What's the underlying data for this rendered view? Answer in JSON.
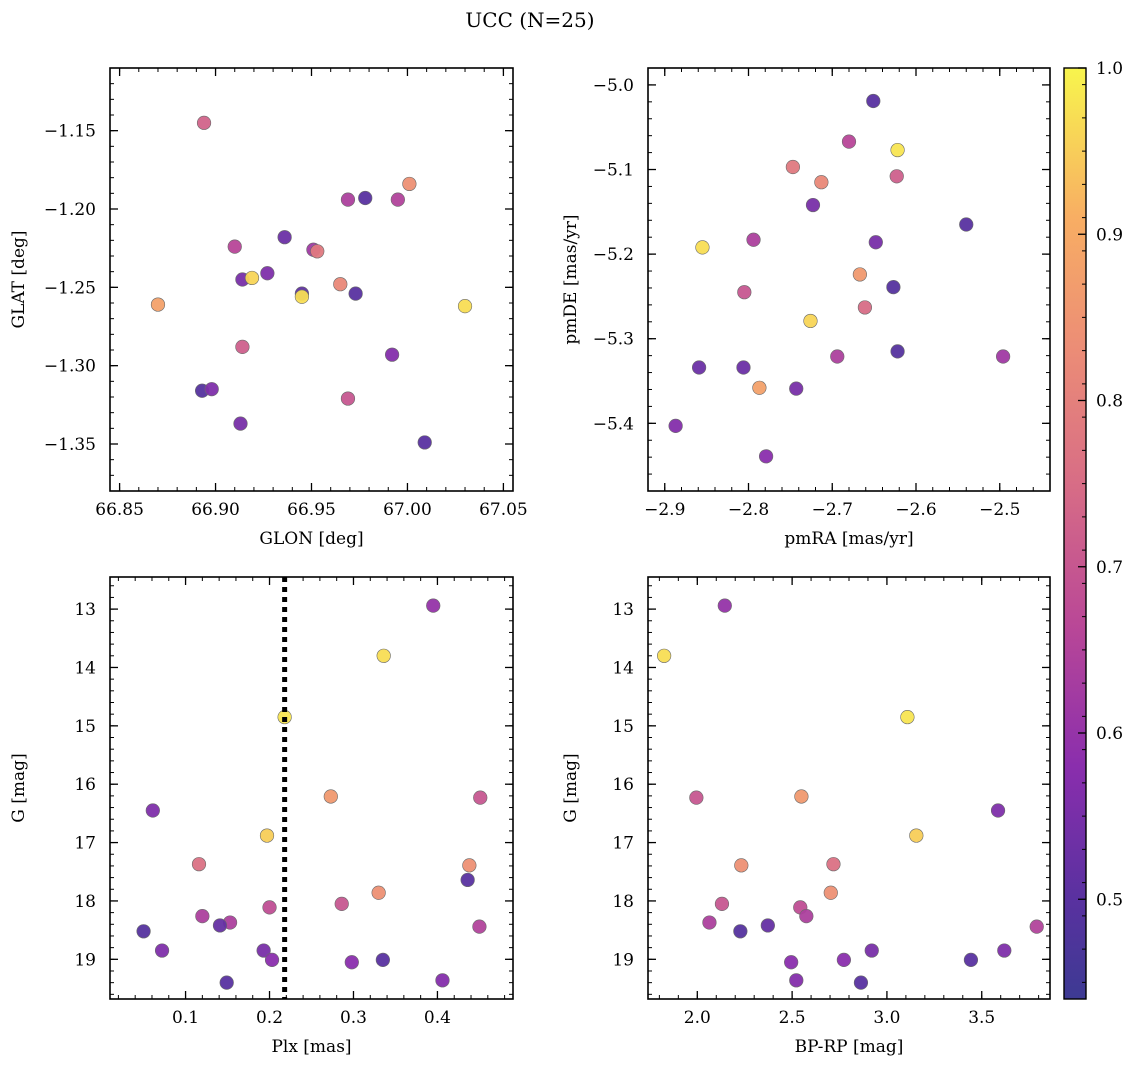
{
  "figure": {
    "title": "UCC (N=25)"
  },
  "colorbar": {
    "range": [
      0.44,
      1.0
    ],
    "ticks": [
      0.5,
      0.6,
      0.7,
      0.8,
      0.9,
      1.0
    ],
    "tick_labels": [
      "0.5",
      "0.6",
      "0.7",
      "0.8",
      "0.9",
      "1.0"
    ],
    "colormap": "plasma"
  },
  "chart_data": [
    {
      "type": "scatter",
      "xlabel": "GLON [deg]",
      "ylabel": "GLAT [deg]",
      "xlim": [
        66.845,
        67.055
      ],
      "ylim": [
        -1.38,
        -1.11
      ],
      "x_ticks": [
        66.85,
        66.9,
        66.95,
        67.0,
        67.05
      ],
      "x_tick_labels": [
        "66.85",
        "66.90",
        "66.95",
        "67.00",
        "67.05"
      ],
      "y_ticks": [
        -1.15,
        -1.2,
        -1.25,
        -1.3,
        -1.35
      ],
      "y_tick_labels": [
        "−1.15",
        "−1.20",
        "−1.25",
        "−1.30",
        "−1.35"
      ],
      "y_inverted": false,
      "points": [
        {
          "x": 66.894,
          "y": -1.145,
          "c": 0.73
        },
        {
          "x": 67.001,
          "y": -1.184,
          "c": 0.84
        },
        {
          "x": 66.969,
          "y": -1.194,
          "c": 0.64
        },
        {
          "x": 66.978,
          "y": -1.193,
          "c": 0.5
        },
        {
          "x": 66.995,
          "y": -1.194,
          "c": 0.65
        },
        {
          "x": 66.936,
          "y": -1.218,
          "c": 0.53
        },
        {
          "x": 66.91,
          "y": -1.224,
          "c": 0.66
        },
        {
          "x": 66.951,
          "y": -1.226,
          "c": 0.62
        },
        {
          "x": 66.953,
          "y": -1.227,
          "c": 0.78
        },
        {
          "x": 66.914,
          "y": -1.245,
          "c": 0.55
        },
        {
          "x": 66.919,
          "y": -1.244,
          "c": 0.96
        },
        {
          "x": 66.927,
          "y": -1.241,
          "c": 0.56
        },
        {
          "x": 66.965,
          "y": -1.248,
          "c": 0.82
        },
        {
          "x": 66.945,
          "y": -1.254,
          "c": 0.51
        },
        {
          "x": 66.945,
          "y": -1.256,
          "c": 0.97
        },
        {
          "x": 66.973,
          "y": -1.254,
          "c": 0.5
        },
        {
          "x": 66.87,
          "y": -1.261,
          "c": 0.88
        },
        {
          "x": 67.03,
          "y": -1.262,
          "c": 0.97
        },
        {
          "x": 66.914,
          "y": -1.288,
          "c": 0.72
        },
        {
          "x": 66.992,
          "y": -1.293,
          "c": 0.57
        },
        {
          "x": 66.893,
          "y": -1.316,
          "c": 0.49
        },
        {
          "x": 66.898,
          "y": -1.315,
          "c": 0.56
        },
        {
          "x": 66.969,
          "y": -1.321,
          "c": 0.7
        },
        {
          "x": 66.913,
          "y": -1.337,
          "c": 0.55
        },
        {
          "x": 67.009,
          "y": -1.349,
          "c": 0.5
        }
      ]
    },
    {
      "type": "scatter",
      "xlabel": "pmRA [mas/yr]",
      "ylabel": "pmDE [mas/yr]",
      "xlim": [
        -2.92,
        -2.44
      ],
      "ylim": [
        -5.48,
        -4.98
      ],
      "x_ticks": [
        -2.9,
        -2.8,
        -2.7,
        -2.6,
        -2.5
      ],
      "x_tick_labels": [
        "−2.9",
        "−2.8",
        "−2.7",
        "−2.6",
        "−2.5"
      ],
      "y_ticks": [
        -5.0,
        -5.1,
        -5.2,
        -5.3,
        -5.4
      ],
      "y_tick_labels": [
        "−5.0",
        "−5.1",
        "−5.2",
        "−5.3",
        "−5.4"
      ],
      "y_inverted": false,
      "points": [
        {
          "x": -2.651,
          "y": -5.019,
          "c": 0.5
        },
        {
          "x": -2.68,
          "y": -5.067,
          "c": 0.66
        },
        {
          "x": -2.622,
          "y": -5.077,
          "c": 0.98
        },
        {
          "x": -2.747,
          "y": -5.097,
          "c": 0.78
        },
        {
          "x": -2.623,
          "y": -5.108,
          "c": 0.72
        },
        {
          "x": -2.713,
          "y": -5.115,
          "c": 0.82
        },
        {
          "x": -2.723,
          "y": -5.142,
          "c": 0.55
        },
        {
          "x": -2.54,
          "y": -5.165,
          "c": 0.5
        },
        {
          "x": -2.794,
          "y": -5.183,
          "c": 0.64
        },
        {
          "x": -2.648,
          "y": -5.186,
          "c": 0.55
        },
        {
          "x": -2.855,
          "y": -5.192,
          "c": 0.97
        },
        {
          "x": -2.667,
          "y": -5.224,
          "c": 0.86
        },
        {
          "x": -2.627,
          "y": -5.239,
          "c": 0.49
        },
        {
          "x": -2.805,
          "y": -5.245,
          "c": 0.7
        },
        {
          "x": -2.661,
          "y": -5.263,
          "c": 0.75
        },
        {
          "x": -2.726,
          "y": -5.279,
          "c": 0.96
        },
        {
          "x": -2.622,
          "y": -5.315,
          "c": 0.49
        },
        {
          "x": -2.694,
          "y": -5.321,
          "c": 0.64
        },
        {
          "x": -2.496,
          "y": -5.321,
          "c": 0.62
        },
        {
          "x": -2.859,
          "y": -5.334,
          "c": 0.53
        },
        {
          "x": -2.806,
          "y": -5.334,
          "c": 0.53
        },
        {
          "x": -2.787,
          "y": -5.358,
          "c": 0.88
        },
        {
          "x": -2.743,
          "y": -5.359,
          "c": 0.55
        },
        {
          "x": -2.887,
          "y": -5.403,
          "c": 0.57
        },
        {
          "x": -2.779,
          "y": -5.439,
          "c": 0.58
        }
      ]
    },
    {
      "type": "scatter",
      "xlabel": "Plx [mas]",
      "ylabel": "G [mag]",
      "xlim": [
        0.01,
        0.49
      ],
      "ylim": [
        19.68,
        12.45
      ],
      "x_ticks": [
        0.1,
        0.2,
        0.3,
        0.4
      ],
      "x_tick_labels": [
        "0.1",
        "0.2",
        "0.3",
        "0.4"
      ],
      "y_ticks": [
        13,
        14,
        15,
        16,
        17,
        18,
        19
      ],
      "y_tick_labels": [
        "13",
        "14",
        "15",
        "16",
        "17",
        "18",
        "19"
      ],
      "y_inverted": true,
      "vline": {
        "x": 0.218,
        "style": "dotted",
        "color": "#000000"
      },
      "points": [
        {
          "x": 0.395,
          "y": 12.94,
          "c": 0.6
        },
        {
          "x": 0.336,
          "y": 13.8,
          "c": 0.97
        },
        {
          "x": 0.218,
          "y": 14.85,
          "c": 0.98
        },
        {
          "x": 0.273,
          "y": 16.21,
          "c": 0.86
        },
        {
          "x": 0.451,
          "y": 16.23,
          "c": 0.7
        },
        {
          "x": 0.061,
          "y": 16.45,
          "c": 0.56
        },
        {
          "x": 0.197,
          "y": 16.88,
          "c": 0.95
        },
        {
          "x": 0.116,
          "y": 17.37,
          "c": 0.76
        },
        {
          "x": 0.438,
          "y": 17.39,
          "c": 0.84
        },
        {
          "x": 0.436,
          "y": 17.64,
          "c": 0.5
        },
        {
          "x": 0.33,
          "y": 17.86,
          "c": 0.84
        },
        {
          "x": 0.286,
          "y": 18.05,
          "c": 0.7
        },
        {
          "x": 0.2,
          "y": 18.11,
          "c": 0.68
        },
        {
          "x": 0.12,
          "y": 18.26,
          "c": 0.64
        },
        {
          "x": 0.153,
          "y": 18.37,
          "c": 0.64
        },
        {
          "x": 0.141,
          "y": 18.42,
          "c": 0.52
        },
        {
          "x": 0.45,
          "y": 18.44,
          "c": 0.65
        },
        {
          "x": 0.05,
          "y": 18.52,
          "c": 0.49
        },
        {
          "x": 0.072,
          "y": 18.85,
          "c": 0.56
        },
        {
          "x": 0.193,
          "y": 18.85,
          "c": 0.55
        },
        {
          "x": 0.335,
          "y": 19.01,
          "c": 0.5
        },
        {
          "x": 0.203,
          "y": 19.01,
          "c": 0.58
        },
        {
          "x": 0.298,
          "y": 19.05,
          "c": 0.58
        },
        {
          "x": 0.406,
          "y": 19.36,
          "c": 0.57
        },
        {
          "x": 0.149,
          "y": 19.4,
          "c": 0.5
        }
      ]
    },
    {
      "type": "scatter",
      "xlabel": "BP-RP [mag]",
      "ylabel": "G [mag]",
      "xlim": [
        1.74,
        3.86
      ],
      "ylim": [
        19.68,
        12.45
      ],
      "x_ticks": [
        2.0,
        2.5,
        3.0,
        3.5
      ],
      "x_tick_labels": [
        "2.0",
        "2.5",
        "3.0",
        "3.5"
      ],
      "y_ticks": [
        13,
        14,
        15,
        16,
        17,
        18,
        19
      ],
      "y_tick_labels": [
        "13",
        "14",
        "15",
        "16",
        "17",
        "18",
        "19"
      ],
      "y_inverted": true,
      "points": [
        {
          "x": 2.145,
          "y": 12.94,
          "c": 0.6
        },
        {
          "x": 1.825,
          "y": 13.8,
          "c": 0.97
        },
        {
          "x": 3.108,
          "y": 14.85,
          "c": 0.98
        },
        {
          "x": 2.549,
          "y": 16.21,
          "c": 0.86
        },
        {
          "x": 1.995,
          "y": 16.23,
          "c": 0.7
        },
        {
          "x": 3.586,
          "y": 16.45,
          "c": 0.56
        },
        {
          "x": 3.155,
          "y": 16.88,
          "c": 0.95
        },
        {
          "x": 2.718,
          "y": 17.37,
          "c": 0.76
        },
        {
          "x": 2.232,
          "y": 17.39,
          "c": 0.84
        },
        {
          "x": 2.704,
          "y": 17.86,
          "c": 0.84
        },
        {
          "x": 2.13,
          "y": 18.05,
          "c": 0.7
        },
        {
          "x": 2.543,
          "y": 18.11,
          "c": 0.68
        },
        {
          "x": 2.575,
          "y": 18.26,
          "c": 0.64
        },
        {
          "x": 2.064,
          "y": 18.37,
          "c": 0.64
        },
        {
          "x": 2.372,
          "y": 18.42,
          "c": 0.52
        },
        {
          "x": 3.79,
          "y": 18.44,
          "c": 0.65
        },
        {
          "x": 2.227,
          "y": 18.52,
          "c": 0.49
        },
        {
          "x": 3.619,
          "y": 18.85,
          "c": 0.56
        },
        {
          "x": 2.92,
          "y": 18.85,
          "c": 0.55
        },
        {
          "x": 3.443,
          "y": 19.01,
          "c": 0.5
        },
        {
          "x": 2.773,
          "y": 19.01,
          "c": 0.58
        },
        {
          "x": 2.495,
          "y": 19.05,
          "c": 0.58
        },
        {
          "x": 2.522,
          "y": 19.36,
          "c": 0.57
        },
        {
          "x": 2.863,
          "y": 19.4,
          "c": 0.5
        }
      ]
    }
  ]
}
